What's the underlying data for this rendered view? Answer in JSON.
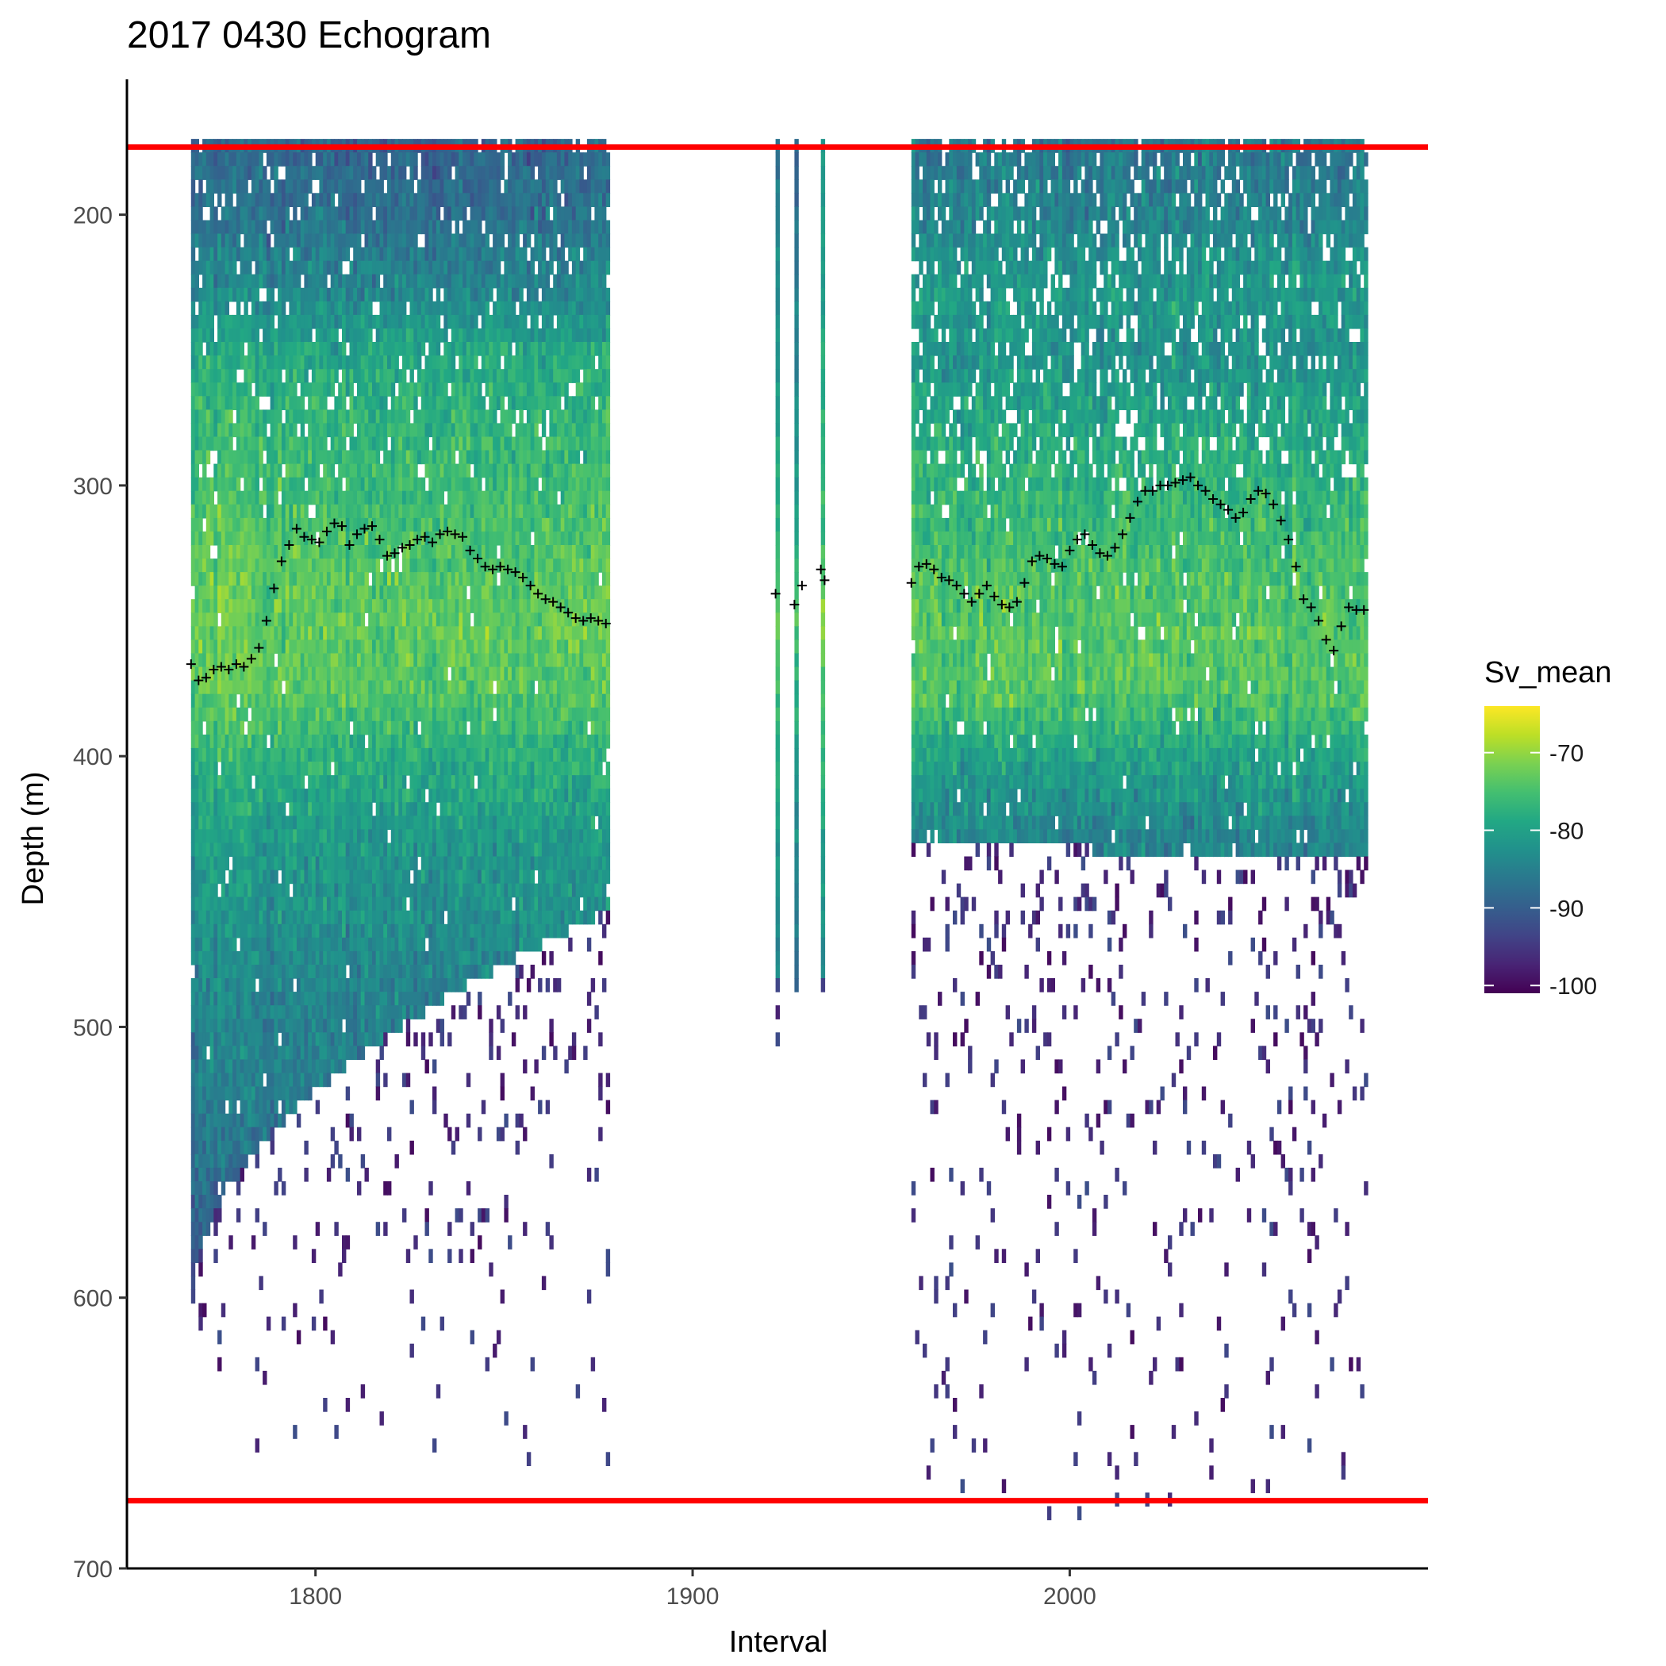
{
  "chart_data": {
    "type": "heatmap",
    "title": "2017 0430 Echogram",
    "xlabel": "Interval",
    "ylabel": "Depth (m)",
    "xlim": [
      1750,
      2095
    ],
    "ylim": [
      150,
      700
    ],
    "y_reversed": true,
    "x_ticks": [
      1800,
      1900,
      2000
    ],
    "y_ticks": [
      200,
      300,
      400,
      500,
      600,
      700
    ],
    "grid": false,
    "colorbar": {
      "title": "Sv_mean",
      "range": [
        -101,
        -64
      ],
      "ticks": [
        -70,
        -80,
        -90,
        -100
      ],
      "palette": "viridis",
      "position": "right"
    },
    "reference_lines": {
      "color": "#ff0000",
      "depths": [
        175,
        675
      ]
    },
    "marker_color": "#000000",
    "cell_size": {
      "interval": 1,
      "depth": 5
    },
    "echogram_blocks": [
      {
        "x_start": 1767,
        "x_end": 1877,
        "profile": [
          [
            175,
            -89
          ],
          [
            200,
            -87
          ],
          [
            225,
            -84
          ],
          [
            250,
            -79
          ],
          [
            275,
            -77
          ],
          [
            300,
            -76
          ],
          [
            325,
            -74
          ],
          [
            350,
            -73
          ],
          [
            375,
            -74
          ],
          [
            400,
            -78
          ],
          [
            425,
            -81
          ],
          [
            450,
            -82
          ],
          [
            475,
            -84
          ],
          [
            500,
            -85
          ],
          [
            525,
            -86
          ],
          [
            550,
            -88
          ],
          [
            575,
            -90
          ],
          [
            600,
            -93
          ],
          [
            625,
            -96
          ]
        ],
        "fill_depth_left": 600,
        "fill_depth_right": 455,
        "fill_shape": "concave",
        "top_depth_left": 172,
        "top_depth_right": 172,
        "sparse_bottom": 660,
        "sparse_density": 0.045,
        "gap_prob_top": 0.07,
        "gap_prob_bottom": 0.02,
        "noise": 5
      },
      {
        "x_start": 1922,
        "x_end": 1922,
        "profile": [
          [
            175,
            -88
          ],
          [
            300,
            -80
          ],
          [
            350,
            -75
          ],
          [
            400,
            -80
          ],
          [
            470,
            -85
          ]
        ],
        "fill_depth_left": 480,
        "fill_depth_right": 480,
        "fill_shape": "linear",
        "top_depth_left": 172,
        "top_depth_right": 172,
        "sparse_bottom": 520,
        "sparse_density": 0.1,
        "gap_prob_top": 0.0,
        "gap_prob_bottom": 0.0,
        "noise": 4
      },
      {
        "x_start": 1927,
        "x_end": 1927,
        "profile": [
          [
            175,
            -88
          ],
          [
            300,
            -80
          ],
          [
            350,
            -74
          ],
          [
            400,
            -80
          ],
          [
            480,
            -86
          ]
        ],
        "fill_depth_left": 485,
        "fill_depth_right": 485,
        "fill_shape": "linear",
        "top_depth_left": 172,
        "top_depth_right": 172,
        "sparse_bottom": 600,
        "sparse_density": 0.1,
        "gap_prob_top": 0.0,
        "gap_prob_bottom": 0.0,
        "noise": 4
      },
      {
        "x_start": 1934,
        "x_end": 1934,
        "profile": [
          [
            175,
            -82
          ],
          [
            300,
            -78
          ],
          [
            350,
            -72
          ],
          [
            400,
            -78
          ],
          [
            475,
            -84
          ]
        ],
        "fill_depth_left": 478,
        "fill_depth_right": 478,
        "fill_shape": "linear",
        "top_depth_left": 172,
        "top_depth_right": 172,
        "sparse_bottom": 500,
        "sparse_density": 0.1,
        "gap_prob_top": 0.0,
        "gap_prob_bottom": 0.0,
        "noise": 4
      },
      {
        "x_start": 1958,
        "x_end": 2078,
        "profile": [
          [
            175,
            -86
          ],
          [
            200,
            -84
          ],
          [
            225,
            -81
          ],
          [
            250,
            -82
          ],
          [
            275,
            -79
          ],
          [
            300,
            -77
          ],
          [
            325,
            -75
          ],
          [
            350,
            -74
          ],
          [
            375,
            -74
          ],
          [
            400,
            -80
          ],
          [
            425,
            -84
          ],
          [
            450,
            -86
          ],
          [
            475,
            -88
          ],
          [
            500,
            -89
          ],
          [
            525,
            -90
          ],
          [
            550,
            -91
          ],
          [
            575,
            -92
          ]
        ],
        "fill_depth_left": 430,
        "fill_depth_right": 435,
        "fill_shape": "linear",
        "top_depth_left": 172,
        "top_depth_right": 172,
        "sparse_bottom": 680,
        "sparse_density": 0.05,
        "gap_prob_top": 0.12,
        "gap_prob_bottom": 0.03,
        "noise": 5
      }
    ],
    "marker_series": [
      {
        "x": [
          1767,
          1769,
          1771,
          1773,
          1775,
          1777,
          1779,
          1781,
          1783,
          1785,
          1787,
          1789,
          1791,
          1793,
          1795,
          1797,
          1799,
          1801,
          1803,
          1805,
          1807,
          1809,
          1811,
          1813,
          1815,
          1817,
          1819,
          1821,
          1823,
          1825,
          1827,
          1829,
          1831,
          1833,
          1835,
          1837,
          1839,
          1841,
          1843,
          1845,
          1847,
          1849,
          1851,
          1853,
          1855,
          1857,
          1859,
          1861,
          1863,
          1865,
          1867,
          1869,
          1871,
          1873,
          1875,
          1877
        ],
        "y": [
          366,
          372,
          371,
          368,
          367,
          368,
          366,
          367,
          364,
          360,
          350,
          338,
          328,
          322,
          316,
          319,
          320,
          321,
          317,
          314,
          315,
          322,
          318,
          316,
          315,
          320,
          326,
          325,
          323,
          322,
          320,
          319,
          321,
          318,
          317,
          318,
          319,
          324,
          327,
          330,
          331,
          330,
          331,
          332,
          334,
          337,
          340,
          342,
          343,
          345,
          347,
          349,
          350,
          349,
          350,
          351
        ]
      },
      {
        "x": [
          1922,
          1927,
          1929,
          1934,
          1935
        ],
        "y": [
          340,
          344,
          337,
          331,
          335
        ]
      },
      {
        "x": [
          1958,
          1960,
          1962,
          1964,
          1966,
          1968,
          1970,
          1972,
          1974,
          1976,
          1978,
          1980,
          1982,
          1984,
          1986,
          1988,
          1990,
          1992,
          1994,
          1996,
          1998,
          2000,
          2002,
          2004,
          2006,
          2008,
          2010,
          2012,
          2014,
          2016,
          2018,
          2020,
          2022,
          2024,
          2026,
          2028,
          2030,
          2032,
          2034,
          2036,
          2038,
          2040,
          2042,
          2044,
          2046,
          2048,
          2050,
          2052,
          2054,
          2056,
          2058,
          2060,
          2062,
          2064,
          2066,
          2068,
          2070,
          2072,
          2074,
          2076,
          2078
        ],
        "y": [
          336,
          330,
          329,
          331,
          334,
          335,
          337,
          340,
          343,
          340,
          337,
          341,
          344,
          345,
          343,
          336,
          328,
          326,
          327,
          329,
          330,
          324,
          320,
          318,
          322,
          325,
          326,
          323,
          318,
          312,
          306,
          302,
          302,
          300,
          300,
          299,
          298,
          297,
          300,
          302,
          305,
          307,
          309,
          312,
          310,
          305,
          302,
          303,
          307,
          313,
          320,
          330,
          342,
          345,
          350,
          357,
          361,
          352,
          345,
          346,
          346
        ]
      }
    ]
  }
}
